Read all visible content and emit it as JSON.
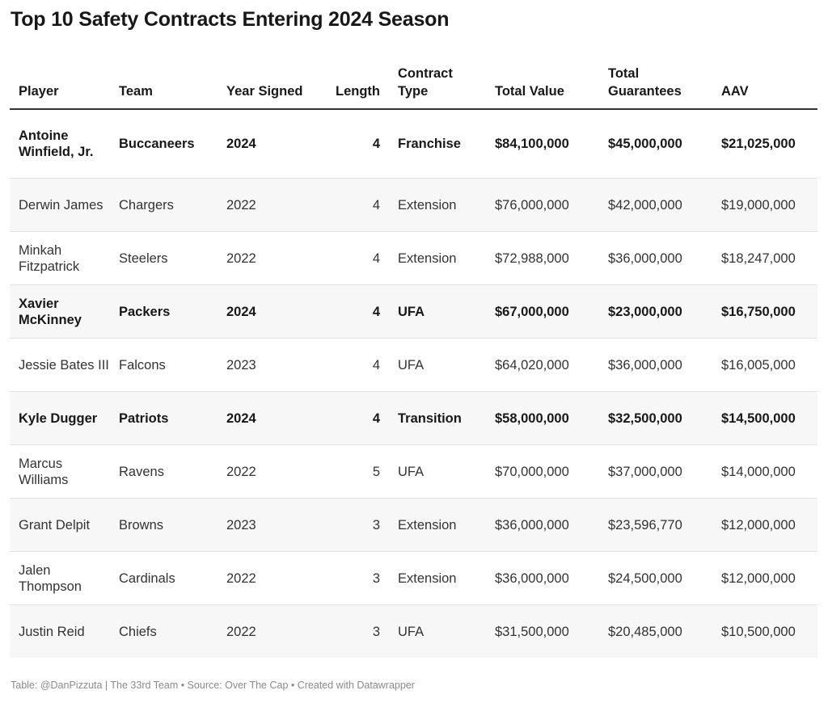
{
  "title": "Top 10 Safety Contracts Entering 2024 Season",
  "footer": "Table: @DanPizzuta | The 33rd Team • Source: Over The Cap • Created with Datawrapper",
  "chart_data": {
    "type": "table",
    "columns": [
      "Player",
      "Team",
      "Year Signed",
      "Length",
      "Contract Type",
      "Total Value",
      "Total Guarantees",
      "AAV"
    ],
    "rows": [
      {
        "player": "Antoine Winfield, Jr.",
        "team": "Buccaneers",
        "year": "2024",
        "length": "4",
        "type": "Franchise",
        "total_value": "$84,100,000",
        "guarantees": "$45,000,000",
        "aav": "$21,025,000",
        "bold": true
      },
      {
        "player": "Derwin James",
        "team": "Chargers",
        "year": "2022",
        "length": "4",
        "type": "Extension",
        "total_value": "$76,000,000",
        "guarantees": "$42,000,000",
        "aav": "$19,000,000",
        "bold": false
      },
      {
        "player": "Minkah Fitzpatrick",
        "team": "Steelers",
        "year": "2022",
        "length": "4",
        "type": "Extension",
        "total_value": "$72,988,000",
        "guarantees": "$36,000,000",
        "aav": "$18,247,000",
        "bold": false
      },
      {
        "player": "Xavier McKinney",
        "team": "Packers",
        "year": "2024",
        "length": "4",
        "type": "UFA",
        "total_value": "$67,000,000",
        "guarantees": "$23,000,000",
        "aav": "$16,750,000",
        "bold": true
      },
      {
        "player": "Jessie Bates III",
        "team": "Falcons",
        "year": "2023",
        "length": "4",
        "type": "UFA",
        "total_value": "$64,020,000",
        "guarantees": "$36,000,000",
        "aav": "$16,005,000",
        "bold": false
      },
      {
        "player": "Kyle Dugger",
        "team": "Patriots",
        "year": "2024",
        "length": "4",
        "type": "Transition",
        "total_value": "$58,000,000",
        "guarantees": "$32,500,000",
        "aav": "$14,500,000",
        "bold": true
      },
      {
        "player": "Marcus Williams",
        "team": "Ravens",
        "year": "2022",
        "length": "5",
        "type": "UFA",
        "total_value": "$70,000,000",
        "guarantees": "$37,000,000",
        "aav": "$14,000,000",
        "bold": false
      },
      {
        "player": "Grant Delpit",
        "team": "Browns",
        "year": "2023",
        "length": "3",
        "type": "Extension",
        "total_value": "$36,000,000",
        "guarantees": "$23,596,770",
        "aav": "$12,000,000",
        "bold": false
      },
      {
        "player": "Jalen Thompson",
        "team": "Cardinals",
        "year": "2022",
        "length": "3",
        "type": "Extension",
        "total_value": "$36,000,000",
        "guarantees": "$24,500,000",
        "aav": "$12,000,000",
        "bold": false
      },
      {
        "player": "Justin Reid",
        "team": "Chiefs",
        "year": "2022",
        "length": "3",
        "type": "UFA",
        "total_value": "$31,500,000",
        "guarantees": "$20,485,000",
        "aav": "$10,500,000",
        "bold": false
      }
    ]
  }
}
